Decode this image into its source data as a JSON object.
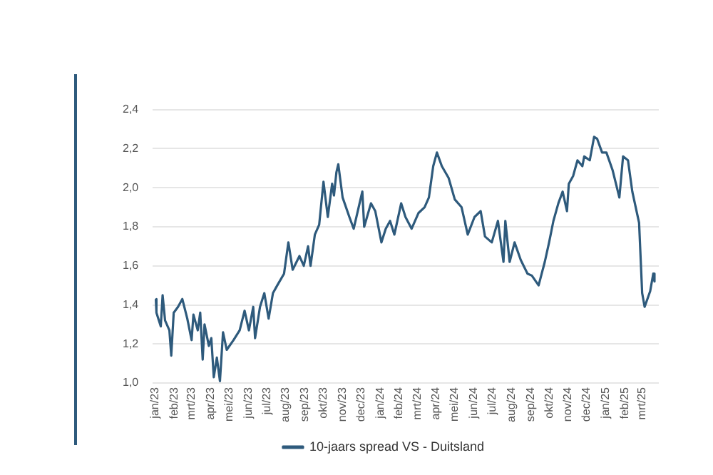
{
  "chart_data": {
    "type": "line",
    "x": [
      "2023-01-02",
      "2023-01-03",
      "2023-01-06",
      "2023-01-10",
      "2023-01-13",
      "2023-01-17",
      "2023-01-24",
      "2023-01-27",
      "2023-01-31",
      "2023-02-07",
      "2023-02-14",
      "2023-02-22",
      "2023-03-01",
      "2023-03-04",
      "2023-03-11",
      "2023-03-15",
      "2023-03-19",
      "2023-03-22",
      "2023-03-29",
      "2023-04-02",
      "2023-04-06",
      "2023-04-11",
      "2023-04-16",
      "2023-04-21",
      "2023-04-27",
      "2023-05-08",
      "2023-05-18",
      "2023-05-26",
      "2023-06-02",
      "2023-06-09",
      "2023-06-12",
      "2023-06-20",
      "2023-06-27",
      "2023-07-04",
      "2023-07-11",
      "2023-07-18",
      "2023-07-29",
      "2023-08-05",
      "2023-08-12",
      "2023-08-23",
      "2023-08-30",
      "2023-09-06",
      "2023-09-10",
      "2023-09-17",
      "2023-09-24",
      "2023-10-01",
      "2023-10-08",
      "2023-10-15",
      "2023-10-18",
      "2023-10-22",
      "2023-10-25",
      "2023-11-01",
      "2023-11-12",
      "2023-11-19",
      "2023-11-30",
      "2023-12-03",
      "2023-12-06",
      "2023-12-17",
      "2023-12-24",
      "2024-01-03",
      "2024-01-10",
      "2024-01-17",
      "2024-01-24",
      "2024-02-04",
      "2024-02-11",
      "2024-02-21",
      "2024-03-03",
      "2024-03-13",
      "2024-03-20",
      "2024-03-27",
      "2024-04-02",
      "2024-04-10",
      "2024-04-21",
      "2024-05-01",
      "2024-05-12",
      "2024-05-22",
      "2024-06-02",
      "2024-06-12",
      "2024-06-19",
      "2024-06-30",
      "2024-07-10",
      "2024-07-19",
      "2024-07-22",
      "2024-07-29",
      "2024-08-06",
      "2024-08-16",
      "2024-08-27",
      "2024-09-03",
      "2024-09-14",
      "2024-09-24",
      "2024-10-01",
      "2024-10-08",
      "2024-10-16",
      "2024-10-23",
      "2024-10-30",
      "2024-11-02",
      "2024-11-09",
      "2024-11-16",
      "2024-11-24",
      "2024-11-27",
      "2024-12-06",
      "2024-12-13",
      "2024-12-18",
      "2024-12-26",
      "2025-01-02",
      "2025-01-12",
      "2025-01-23",
      "2025-01-29",
      "2025-02-06",
      "2025-02-13",
      "2025-02-24",
      "2025-03-01",
      "2025-03-05",
      "2025-03-14",
      "2025-03-19",
      "2025-03-21"
    ],
    "series": [
      {
        "name": "10-jaars spread VS - Duitsland",
        "color": "#2e5a7c",
        "values": [
          1.43,
          1.36,
          1.33,
          1.29,
          1.45,
          1.32,
          1.27,
          1.14,
          1.36,
          1.39,
          1.43,
          1.33,
          1.22,
          1.35,
          1.27,
          1.36,
          1.12,
          1.3,
          1.19,
          1.23,
          1.03,
          1.13,
          1.01,
          1.26,
          1.17,
          1.22,
          1.27,
          1.37,
          1.27,
          1.39,
          1.23,
          1.39,
          1.46,
          1.33,
          1.46,
          1.5,
          1.56,
          1.72,
          1.58,
          1.65,
          1.6,
          1.7,
          1.6,
          1.76,
          1.81,
          2.03,
          1.85,
          2.02,
          1.96,
          2.08,
          2.12,
          1.95,
          1.85,
          1.79,
          1.94,
          1.98,
          1.8,
          1.92,
          1.88,
          1.72,
          1.79,
          1.83,
          1.76,
          1.92,
          1.85,
          1.79,
          1.87,
          1.9,
          1.95,
          2.11,
          2.18,
          2.11,
          2.05,
          1.94,
          1.9,
          1.76,
          1.85,
          1.88,
          1.75,
          1.72,
          1.83,
          1.62,
          1.83,
          1.62,
          1.72,
          1.63,
          1.56,
          1.55,
          1.5,
          1.62,
          1.72,
          1.83,
          1.92,
          1.98,
          1.88,
          2.02,
          2.06,
          2.14,
          2.11,
          2.16,
          2.14,
          2.26,
          2.25,
          2.18,
          2.18,
          2.09,
          1.95,
          2.16,
          2.14,
          1.98,
          1.82,
          1.46,
          1.39,
          1.47,
          1.56,
          1.52
        ]
      }
    ],
    "xlim": [
      "2022-12-28",
      "2025-03-28"
    ],
    "xticks": [
      {
        "value": "2023-01-01",
        "label": "jan/23"
      },
      {
        "value": "2023-02-01",
        "label": "feb/23"
      },
      {
        "value": "2023-03-01",
        "label": "mrt/23"
      },
      {
        "value": "2023-04-01",
        "label": "apr/23"
      },
      {
        "value": "2023-05-01",
        "label": "mei/23"
      },
      {
        "value": "2023-06-01",
        "label": "jun/23"
      },
      {
        "value": "2023-07-01",
        "label": "jul/23"
      },
      {
        "value": "2023-08-01",
        "label": "aug/23"
      },
      {
        "value": "2023-09-01",
        "label": "sep/23"
      },
      {
        "value": "2023-10-01",
        "label": "okt/23"
      },
      {
        "value": "2023-11-01",
        "label": "nov/23"
      },
      {
        "value": "2023-12-01",
        "label": "dec/23"
      },
      {
        "value": "2024-01-01",
        "label": "jan/24"
      },
      {
        "value": "2024-02-01",
        "label": "feb/24"
      },
      {
        "value": "2024-03-01",
        "label": "mrt/24"
      },
      {
        "value": "2024-04-01",
        "label": "apr/24"
      },
      {
        "value": "2024-05-01",
        "label": "mei/24"
      },
      {
        "value": "2024-06-01",
        "label": "jun/24"
      },
      {
        "value": "2024-07-01",
        "label": "jul/24"
      },
      {
        "value": "2024-08-01",
        "label": "aug/24"
      },
      {
        "value": "2024-09-01",
        "label": "sep/24"
      },
      {
        "value": "2024-10-01",
        "label": "okt/24"
      },
      {
        "value": "2024-11-01",
        "label": "nov/24"
      },
      {
        "value": "2024-12-01",
        "label": "dec/24"
      },
      {
        "value": "2025-01-01",
        "label": "jan/25"
      },
      {
        "value": "2025-02-01",
        "label": "feb/25"
      },
      {
        "value": "2025-03-01",
        "label": "mrt/25"
      }
    ],
    "ylim": [
      1.0,
      2.4
    ],
    "yticks": [
      {
        "value": 1.0,
        "label": "1,0"
      },
      {
        "value": 1.2,
        "label": "1,2"
      },
      {
        "value": 1.4,
        "label": "1,4"
      },
      {
        "value": 1.6,
        "label": "1,6"
      },
      {
        "value": 1.8,
        "label": "1,8"
      },
      {
        "value": 2.0,
        "label": "2,0"
      },
      {
        "value": 2.2,
        "label": "2,2"
      },
      {
        "value": 2.4,
        "label": "2,4"
      }
    ],
    "grid": "y",
    "legend": "bottom",
    "marker": "none",
    "line_style": "solid"
  }
}
